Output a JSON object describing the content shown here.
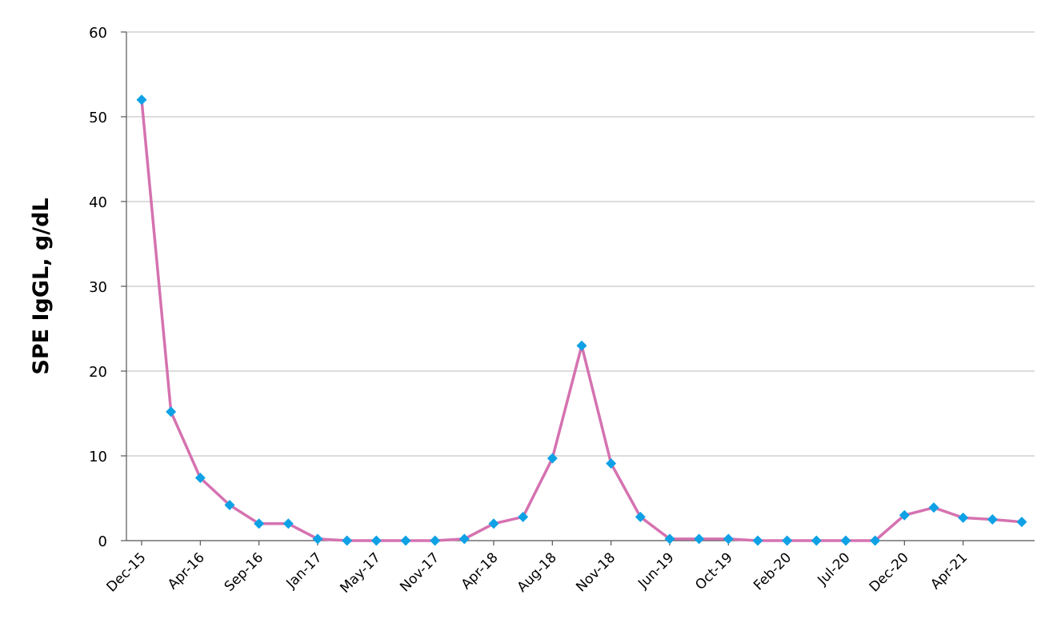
{
  "chart_data": {
    "type": "line",
    "title": "",
    "xlabel": "",
    "ylabel": "SPE IgGL, g/dL",
    "ylim": [
      0,
      60
    ],
    "yticks": [
      0,
      10,
      20,
      30,
      40,
      50,
      60
    ],
    "grid": "horizontal",
    "x_tick_labels": [
      "Dec-15",
      "Apr-16",
      "Sep-16",
      "Jan-17",
      "May-17",
      "Nov-17",
      "Apr-18",
      "Aug-18",
      "Nov-18",
      "Jun-19",
      "Oct-19",
      "Feb-20",
      "Jul-20",
      "Dec-20",
      "Apr-21"
    ],
    "x_tick_point_index": [
      0,
      2,
      4,
      6,
      8,
      10,
      12,
      14,
      16,
      18,
      20,
      22,
      24,
      26,
      28
    ],
    "series": [
      {
        "values": [
          52,
          15.2,
          7.4,
          4.2,
          2.0,
          2.0,
          0.2,
          0.0,
          0.0,
          0.0,
          0.0,
          0.2,
          2.0,
          2.8,
          9.7,
          23.0,
          9.1,
          2.8,
          0.2,
          0.2,
          0.2,
          0.0,
          0.0,
          0.0,
          0.0,
          0.0,
          3.0,
          3.9,
          2.7,
          2.5,
          2.2
        ],
        "color": "#d572b0",
        "marker_color": "#0ea1e5"
      }
    ],
    "colors": {
      "axis": "#555555",
      "grid": "#c8c8c8"
    }
  }
}
